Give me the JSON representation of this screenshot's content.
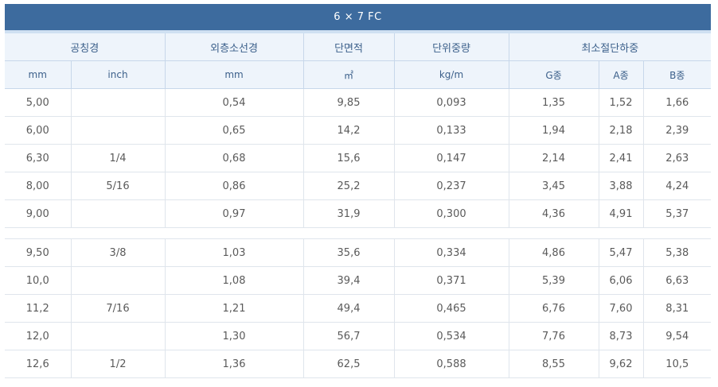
{
  "title": "6 × 7 FC",
  "headers": {
    "nominal_diameter": "공칭경",
    "strand_diameter": "외층소선경",
    "cross_section": "단면적",
    "unit_weight": "단위중량",
    "min_breaking_load": "최소절단하중"
  },
  "subheaders": {
    "mm": "mm",
    "inch": "inch",
    "strand_mm": "mm",
    "area_unit": "㎡",
    "weight_unit": "kg/m",
    "g": "G종",
    "a": "A종",
    "b": "B종"
  },
  "group1": [
    {
      "mm": "5,00",
      "inch": "",
      "strand": "0,54",
      "area": "9,85",
      "weight": "0,093",
      "g": "1,35",
      "a": "1,52",
      "b": "1,66"
    },
    {
      "mm": "6,00",
      "inch": "",
      "strand": "0,65",
      "area": "14,2",
      "weight": "0,133",
      "g": "1,94",
      "a": "2,18",
      "b": "2,39"
    },
    {
      "mm": "6,30",
      "inch": "1/4",
      "strand": "0,68",
      "area": "15,6",
      "weight": "0,147",
      "g": "2,14",
      "a": "2,41",
      "b": "2,63"
    },
    {
      "mm": "8,00",
      "inch": "5/16",
      "strand": "0,86",
      "area": "25,2",
      "weight": "0,237",
      "g": "3,45",
      "a": "3,88",
      "b": "4,24"
    },
    {
      "mm": "9,00",
      "inch": "",
      "strand": "0,97",
      "area": "31,9",
      "weight": "0,300",
      "g": "4,36",
      "a": "4,91",
      "b": "5,37"
    }
  ],
  "group2": [
    {
      "mm": "9,50",
      "inch": "3/8",
      "strand": "1,03",
      "area": "35,6",
      "weight": "0,334",
      "g": "4,86",
      "a": "5,47",
      "b": "5,38"
    },
    {
      "mm": "10,0",
      "inch": "",
      "strand": "1,08",
      "area": "39,4",
      "weight": "0,371",
      "g": "5,39",
      "a": "6,06",
      "b": "6,63"
    },
    {
      "mm": "11,2",
      "inch": "7/16",
      "strand": "1,21",
      "area": "49,4",
      "weight": "0,465",
      "g": "6,76",
      "a": "7,60",
      "b": "8,31"
    },
    {
      "mm": "12,0",
      "inch": "",
      "strand": "1,30",
      "area": "56,7",
      "weight": "0,534",
      "g": "7,76",
      "a": "8,73",
      "b": "9,54"
    },
    {
      "mm": "12,6",
      "inch": "1/2",
      "strand": "1,36",
      "area": "62,5",
      "weight": "0,588",
      "g": "8,55",
      "a": "9,62",
      "b": "10,5"
    }
  ]
}
